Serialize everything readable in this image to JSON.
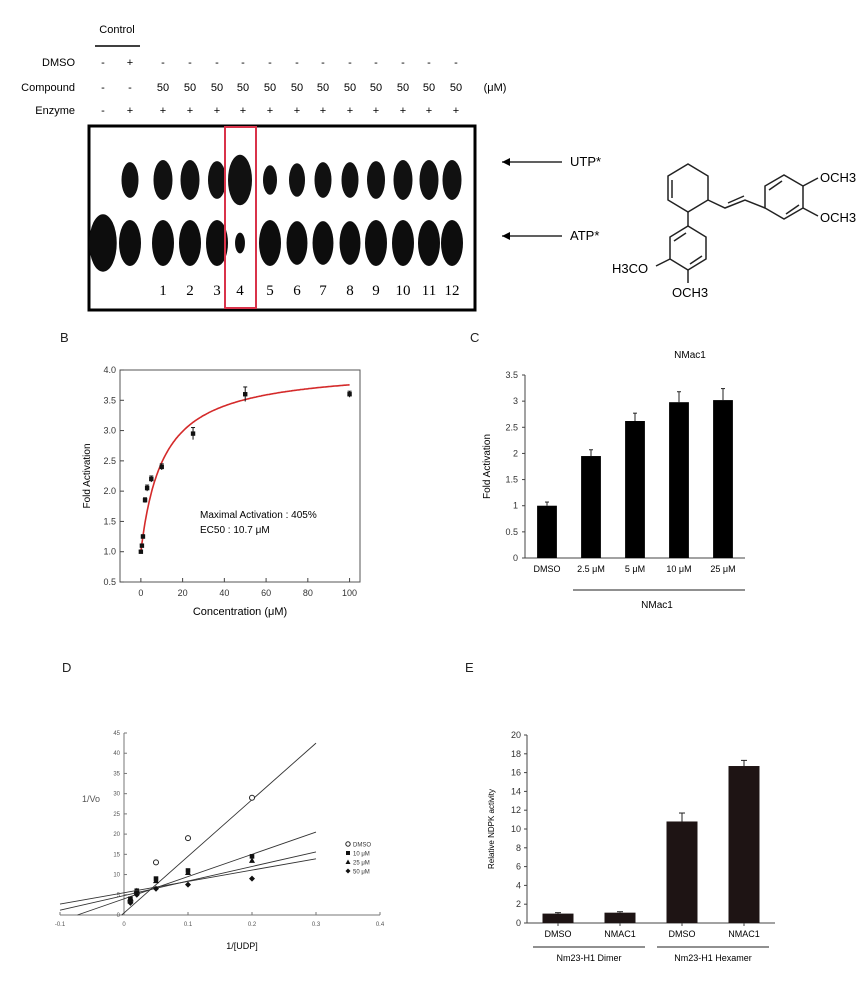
{
  "panelA": {
    "control_label": "Control",
    "rows": [
      {
        "label": "DMSO",
        "values": [
          "-",
          "+",
          "-",
          "-",
          "-",
          "-",
          "-",
          "-",
          "-",
          "-",
          "-",
          "-",
          "-",
          "-"
        ]
      },
      {
        "label": "Compound",
        "values": [
          "-",
          "-",
          "50",
          "50",
          "50",
          "50",
          "50",
          "50",
          "50",
          "50",
          "50",
          "50",
          "50",
          "50"
        ],
        "unit": "(μM)"
      },
      {
        "label": "Enzyme",
        "values": [
          "-",
          "+",
          "+",
          "+",
          "+",
          "+",
          "+",
          "+",
          "+",
          "+",
          "+",
          "+",
          "+",
          "+"
        ]
      }
    ],
    "lane_numbers": [
      "1",
      "2",
      "3",
      "4",
      "5",
      "6",
      "7",
      "8",
      "9",
      "10",
      "11",
      "12"
    ],
    "utp_label": "UTP*",
    "atp_label": "ATP*",
    "highlight_lane": "4"
  },
  "structure": {
    "groups": [
      "OCH3",
      "OCH3",
      "H3CO",
      "OCH3"
    ],
    "name": "NMac1"
  },
  "chart_data": [
    {
      "panel": "B",
      "type": "scatter",
      "xlabel": "Concentration (μM)",
      "ylabel": "Fold Activation",
      "xlim": [
        -10,
        105
      ],
      "ylim": [
        0.5,
        4.0
      ],
      "xticks": [
        "0",
        "20",
        "40",
        "60",
        "80",
        "100"
      ],
      "yticks": [
        "0.5",
        "1.0",
        "1.5",
        "2.0",
        "2.5",
        "3.0",
        "3.5",
        "4.0"
      ],
      "x": [
        0,
        0.5,
        1,
        2,
        3,
        5,
        10,
        25,
        50,
        100
      ],
      "y": [
        1.0,
        1.1,
        1.25,
        1.85,
        2.05,
        2.2,
        2.4,
        2.95,
        3.6,
        3.6
      ],
      "errors": [
        0.02,
        0.02,
        0.03,
        0.04,
        0.05,
        0.05,
        0.05,
        0.1,
        0.12,
        0.05
      ],
      "fit": {
        "max": 4.05,
        "ec50": 10.7,
        "base": 1.0,
        "color": "#d42a2a"
      },
      "annotations": [
        "Maximal Activation : 405%",
        "EC50 : 10.7 μM"
      ]
    },
    {
      "panel": "C",
      "type": "bar",
      "title": "NMac1",
      "ylabel": "Fold Activation",
      "categories": [
        "DMSO",
        "2.5 μM",
        "5 μM",
        "10 μM",
        "25 μM"
      ],
      "values": [
        1.0,
        1.95,
        2.62,
        2.98,
        3.02
      ],
      "errors": [
        0.07,
        0.12,
        0.15,
        0.2,
        0.22
      ],
      "ylim": [
        0,
        3.5
      ],
      "yticks": [
        "0",
        "0.5",
        "1",
        "1.5",
        "2",
        "2.5",
        "3",
        "3.5"
      ],
      "group_label": "NMac1",
      "bar_color": "#000000"
    },
    {
      "panel": "D",
      "type": "scatter",
      "xlabel": "1/[UDP]",
      "ylabel": "1/Vo",
      "xlim": [
        -0.1,
        0.4
      ],
      "ylim": [
        0,
        45
      ],
      "xticks": [
        "-0.1",
        "0",
        "0.1",
        "0.2",
        "0.3",
        "0.4"
      ],
      "yticks": [
        "0",
        "5",
        "10",
        "15",
        "20",
        "25",
        "30",
        "35",
        "40",
        "45"
      ],
      "series": [
        {
          "name": "DMSO",
          "marker": "open-circle",
          "x": [
            0.01,
            0.02,
            0.05,
            0.1,
            0.2
          ],
          "y": [
            3.5,
            5.5,
            13,
            19,
            29
          ],
          "slope": 140,
          "intercept": 0.5
        },
        {
          "name": "10 μM",
          "marker": "square",
          "x": [
            0.01,
            0.02,
            0.05,
            0.1,
            0.2
          ],
          "y": [
            4,
            6,
            9,
            11,
            14.5
          ],
          "slope": 55,
          "intercept": 4.0
        },
        {
          "name": "25 μM",
          "marker": "triangle",
          "x": [
            0.01,
            0.02,
            0.05,
            0.1,
            0.2
          ],
          "y": [
            3.5,
            6,
            8.5,
            10.5,
            13.5
          ],
          "slope": 36,
          "intercept": 4.8
        },
        {
          "name": "50 μM",
          "marker": "diamond",
          "x": [
            0.01,
            0.02,
            0.05,
            0.1,
            0.2
          ],
          "y": [
            3,
            5,
            6.5,
            7.5,
            9
          ],
          "slope": 28,
          "intercept": 5.5
        }
      ]
    },
    {
      "panel": "E",
      "type": "bar",
      "ylabel": "Relative NDPK activity",
      "categories": [
        "DMSO",
        "NMAC1",
        "DMSO",
        "NMAC1"
      ],
      "values": [
        1.0,
        1.1,
        10.8,
        16.7
      ],
      "errors": [
        0.1,
        0.1,
        0.9,
        0.6
      ],
      "ylim": [
        0,
        20
      ],
      "yticks": [
        "0",
        "2",
        "4",
        "6",
        "8",
        "10",
        "12",
        "14",
        "16",
        "18",
        "20"
      ],
      "groups": [
        "Nm23-H1 Dimer",
        "Nm23-H1 Hexamer"
      ],
      "bar_color": "#1e1414"
    }
  ],
  "panel_letters": {
    "B": "B",
    "C": "C",
    "D": "D",
    "E": "E"
  }
}
